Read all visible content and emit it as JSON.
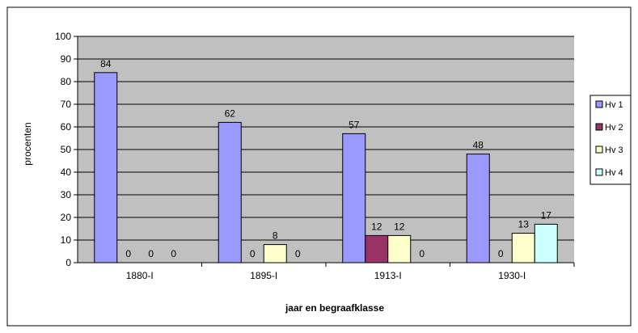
{
  "chart_data": {
    "type": "bar",
    "title": "",
    "xlabel": "jaar en begraafklasse",
    "ylabel": "procenten",
    "ylim": [
      0,
      100
    ],
    "yticks": [
      0,
      10,
      20,
      30,
      40,
      50,
      60,
      70,
      80,
      90,
      100
    ],
    "grid": true,
    "legend_position": "right",
    "categories": [
      "1880-I",
      "1895-I",
      "1913-I",
      "1930-I"
    ],
    "series": [
      {
        "name": "Hv 1",
        "values": [
          84,
          62,
          57,
          48
        ],
        "color": "#9999ff"
      },
      {
        "name": "Hv 2",
        "values": [
          0,
          0,
          12,
          0
        ],
        "color": "#993366"
      },
      {
        "name": "Hv 3",
        "values": [
          0,
          8,
          12,
          13
        ],
        "color": "#ffffcc"
      },
      {
        "name": "Hv 4",
        "values": [
          0,
          0,
          0,
          17
        ],
        "color": "#ccffff"
      }
    ],
    "plot_background": "#c0c0c0"
  }
}
